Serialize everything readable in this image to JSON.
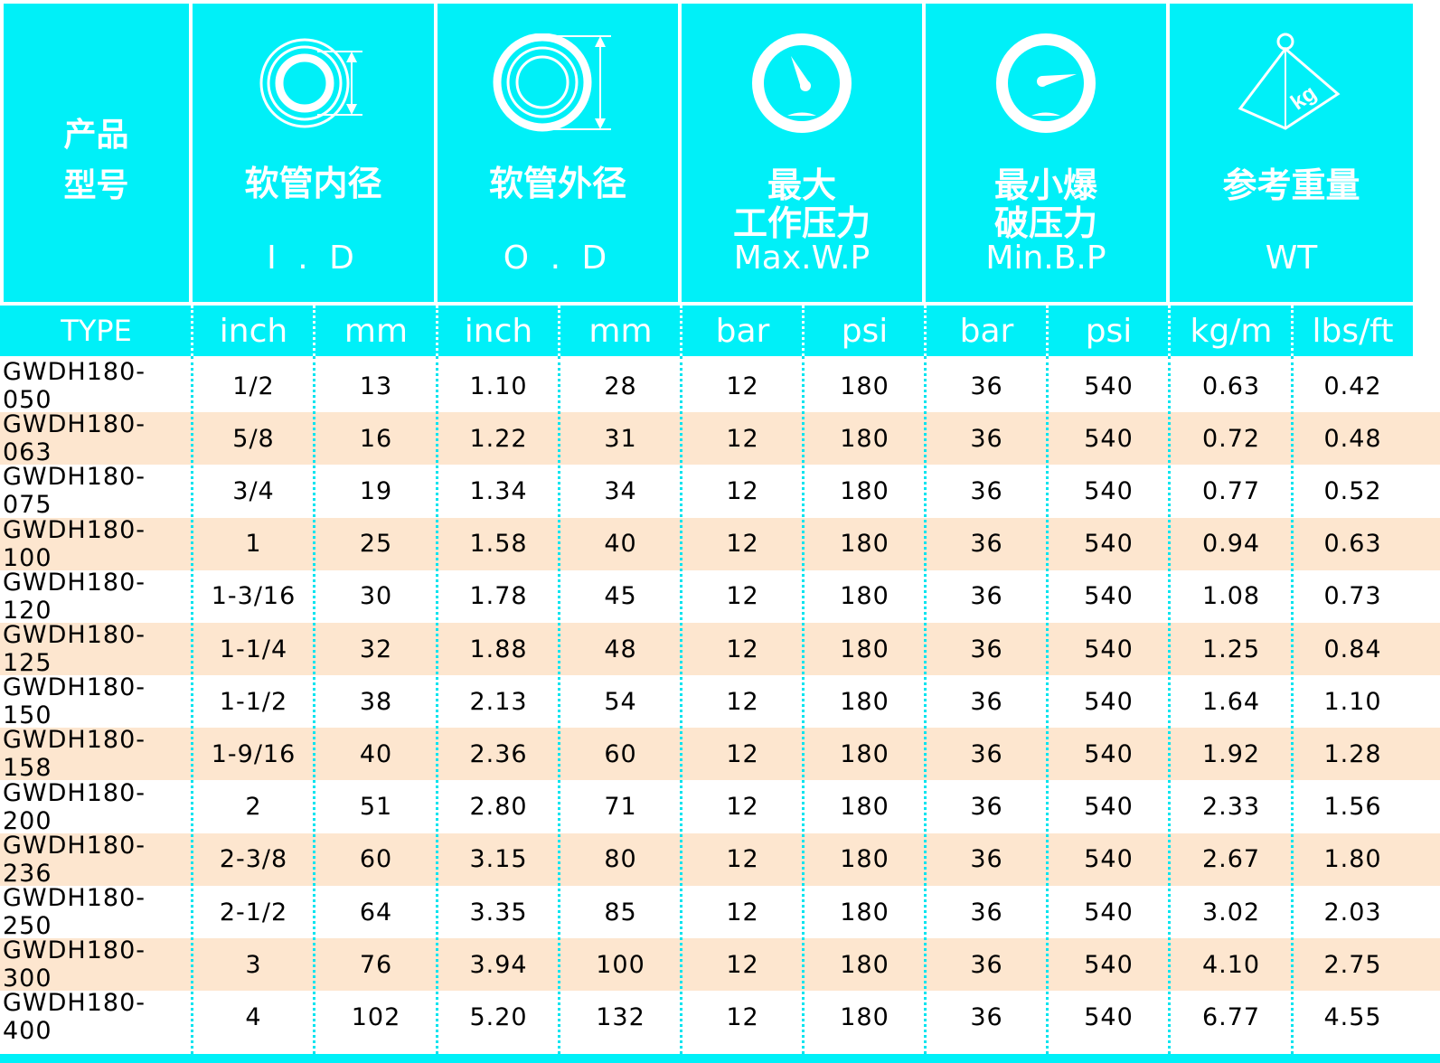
{
  "header": {
    "type_cn_line1": "产品",
    "type_cn_line2": "型号",
    "id_cn": "软管内径",
    "id_en": "I . D",
    "od_cn": "软管外径",
    "od_en": "O . D",
    "wp_cn_line1": "最大",
    "wp_cn_line2": "工作压力",
    "wp_en": "Max.W.P",
    "bp_cn_line1": "最小爆",
    "bp_cn_line2": "破压力",
    "bp_en": "Min.B.P",
    "wt_cn": "参考重量",
    "wt_en": "WT",
    "kg_icon_text": "kg"
  },
  "units": {
    "type": "TYPE",
    "id_inch": "inch",
    "id_mm": "mm",
    "od_inch": "inch",
    "od_mm": "mm",
    "wp_bar": "bar",
    "wp_psi": "psi",
    "bp_bar": "bar",
    "bp_psi": "psi",
    "wt_kgm": "kg/m",
    "wt_lbsft": "lbs/ft"
  },
  "rows": [
    [
      "GWDH180-050",
      "1/2",
      "13",
      "1.10",
      "28",
      "12",
      "180",
      "36",
      "540",
      "0.63",
      "0.42"
    ],
    [
      "GWDH180-063",
      "5/8",
      "16",
      "1.22",
      "31",
      "12",
      "180",
      "36",
      "540",
      "0.72",
      "0.48"
    ],
    [
      "GWDH180-075",
      "3/4",
      "19",
      "1.34",
      "34",
      "12",
      "180",
      "36",
      "540",
      "0.77",
      "0.52"
    ],
    [
      "GWDH180-100",
      "1",
      "25",
      "1.58",
      "40",
      "12",
      "180",
      "36",
      "540",
      "0.94",
      "0.63"
    ],
    [
      "GWDH180-120",
      "1-3/16",
      "30",
      "1.78",
      "45",
      "12",
      "180",
      "36",
      "540",
      "1.08",
      "0.73"
    ],
    [
      "GWDH180-125",
      "1-1/4",
      "32",
      "1.88",
      "48",
      "12",
      "180",
      "36",
      "540",
      "1.25",
      "0.84"
    ],
    [
      "GWDH180-150",
      "1-1/2",
      "38",
      "2.13",
      "54",
      "12",
      "180",
      "36",
      "540",
      "1.64",
      "1.10"
    ],
    [
      "GWDH180-158",
      "1-9/16",
      "40",
      "2.36",
      "60",
      "12",
      "180",
      "36",
      "540",
      "1.92",
      "1.28"
    ],
    [
      "GWDH180-200",
      "2",
      "51",
      "2.80",
      "71",
      "12",
      "180",
      "36",
      "540",
      "2.33",
      "1.56"
    ],
    [
      "GWDH180-236",
      "2-3/8",
      "60",
      "3.15",
      "80",
      "12",
      "180",
      "36",
      "540",
      "2.67",
      "1.80"
    ],
    [
      "GWDH180-250",
      "2-1/2",
      "64",
      "3.35",
      "85",
      "12",
      "180",
      "36",
      "540",
      "3.02",
      "2.03"
    ],
    [
      "GWDH180-300",
      "3",
      "76",
      "3.94",
      "100",
      "12",
      "180",
      "36",
      "540",
      "4.10",
      "2.75"
    ],
    [
      "GWDH180-400",
      "4",
      "102",
      "5.20",
      "132",
      "12",
      "180",
      "36",
      "540",
      "6.77",
      "4.55"
    ]
  ],
  "colors": {
    "header_bg": "#00f0f8",
    "alt_row_bg": "#fde6cf",
    "text": "#000000",
    "header_text": "#ffffff"
  }
}
